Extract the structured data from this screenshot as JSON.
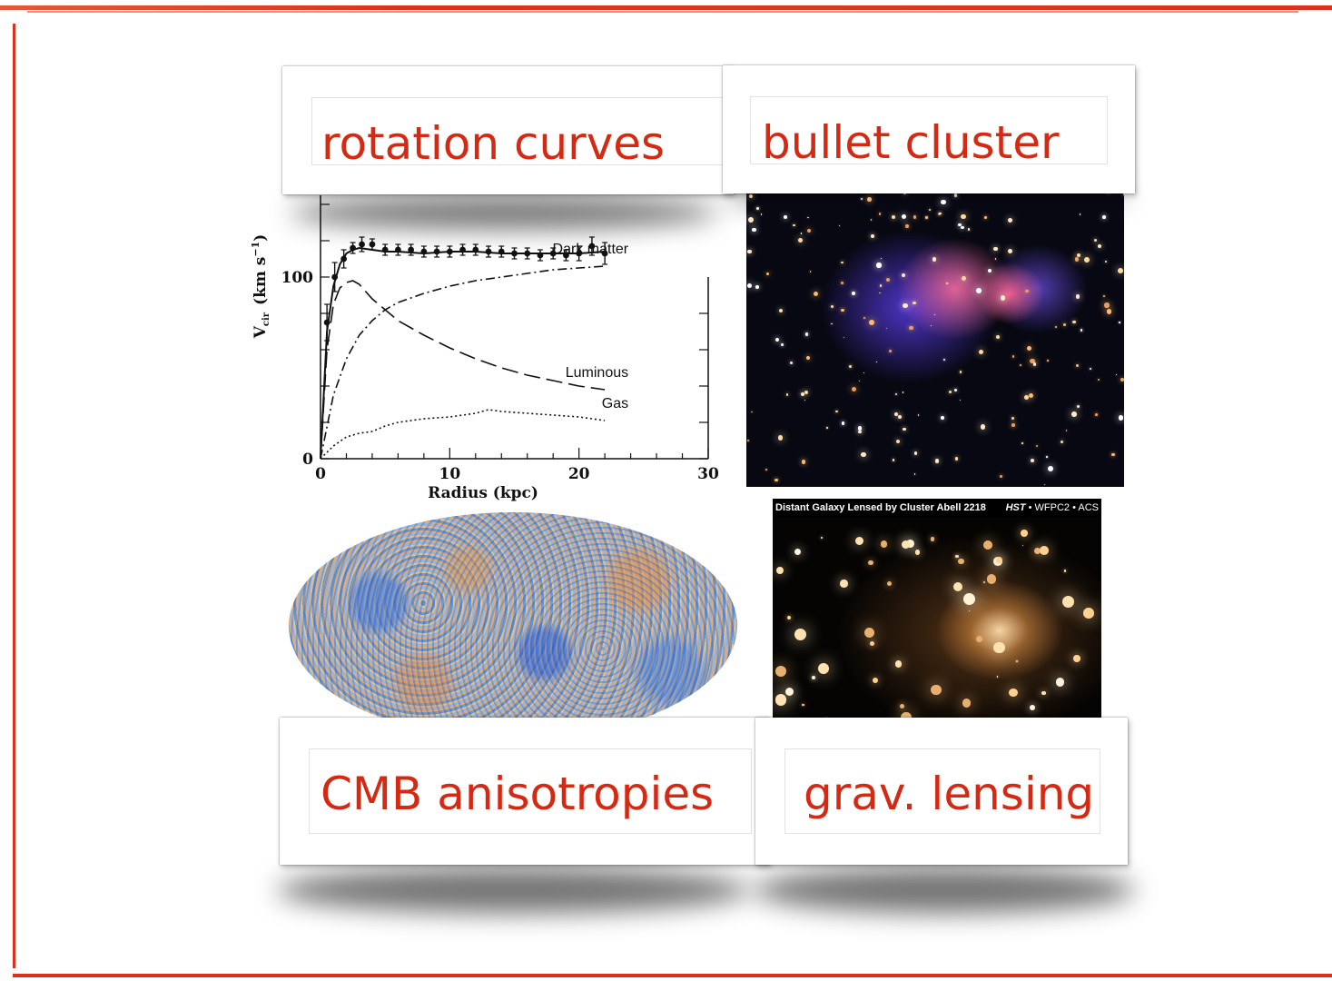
{
  "labels": {
    "rotation": "rotation curves",
    "bullet": "bullet cluster",
    "cmb": "CMB anisotropies",
    "lensing": "grav. lensing"
  },
  "lensing_image": {
    "caption": "Distant Galaxy Lensed by Cluster Abell 2218",
    "instrument_hst": "HST",
    "instrument_rest": " • WFPC2 • ACS"
  },
  "colors": {
    "accent": "#d42a14",
    "frame": "#d9331f"
  },
  "chart_data": {
    "type": "line",
    "xlabel": "Radius (kpc)",
    "ylabel": "V",
    "ylabel_sub": "cir",
    "ylabel_units": "(km s",
    "ylabel_exp": "−1",
    "ylabel_close": ")",
    "xlim": [
      0,
      30
    ],
    "ylim": [
      0,
      140
    ],
    "xticks": [
      0,
      10,
      20,
      30
    ],
    "yticks": [
      0,
      100
    ],
    "grid": false,
    "series": [
      {
        "name": "Dark matter",
        "style": "dashdot",
        "x": [
          0,
          1,
          2,
          3,
          4,
          5,
          6,
          8,
          10,
          12,
          14,
          16,
          18,
          20,
          22
        ],
        "y": [
          0,
          35,
          55,
          68,
          76,
          82,
          86,
          91,
          95,
          98,
          100,
          102,
          104,
          105,
          106
        ]
      },
      {
        "name": "Luminous",
        "style": "longdash",
        "x": [
          0,
          0.5,
          1,
          1.5,
          2,
          2.5,
          3,
          4,
          5,
          6,
          8,
          10,
          12,
          14,
          16,
          18,
          20,
          22
        ],
        "y": [
          0,
          60,
          85,
          94,
          97,
          98,
          96,
          88,
          82,
          76,
          68,
          61,
          55,
          50,
          46,
          43,
          40,
          38
        ]
      },
      {
        "name": "Gas",
        "style": "dotted",
        "x": [
          0,
          1,
          2,
          3,
          4,
          5,
          6,
          8,
          10,
          12,
          13,
          14,
          16,
          18,
          20,
          22
        ],
        "y": [
          0,
          7,
          12,
          14,
          15,
          18,
          20,
          22,
          23,
          25,
          27,
          26,
          25,
          24,
          23,
          21
        ]
      },
      {
        "name": "",
        "style": "solid",
        "x": [
          0,
          0.5,
          1,
          1.5,
          2,
          2.5,
          3,
          4,
          5,
          6,
          8,
          10,
          12,
          14,
          16,
          18,
          20,
          22
        ],
        "y": [
          0,
          70,
          95,
          107,
          113,
          115,
          116,
          115,
          114,
          114,
          113,
          114,
          114,
          113,
          113,
          113,
          113,
          114
        ]
      }
    ],
    "observed_points": {
      "x": [
        0.5,
        1.1,
        1.8,
        2.5,
        3.2,
        4,
        5,
        6,
        7,
        8,
        9,
        10,
        11,
        12,
        13,
        14,
        15,
        16,
        17,
        18,
        19,
        20,
        21,
        22
      ],
      "y": [
        75,
        100,
        110,
        116,
        118,
        118,
        115,
        115,
        115,
        114,
        114,
        114,
        115,
        115,
        114,
        114,
        113,
        113,
        112,
        113,
        112,
        113,
        117,
        113
      ],
      "err": [
        10,
        8,
        5,
        3,
        4,
        3,
        3,
        3,
        3,
        3,
        3,
        3,
        3,
        3,
        3,
        3,
        3,
        3,
        3,
        3,
        3,
        4,
        5,
        6
      ]
    }
  }
}
